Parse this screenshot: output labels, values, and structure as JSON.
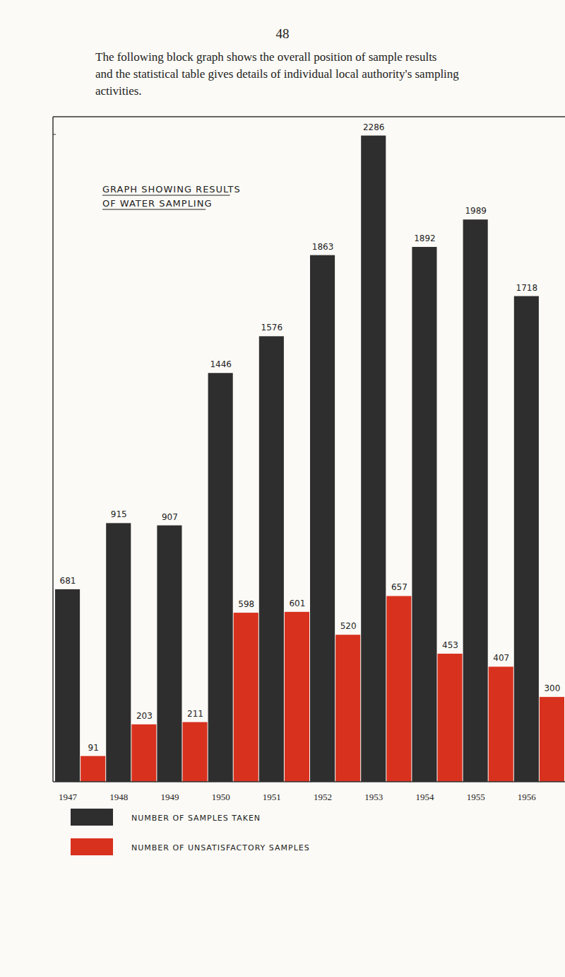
{
  "page": {
    "number": "48",
    "text_lines": [
      "The following block graph shows the overall position of sample results",
      "and the statistical table gives details of individual local authority's sampling",
      "activities."
    ]
  },
  "chart_data": {
    "type": "bar",
    "title": "GRAPH SHOWING RESULTS OF WATER SAMPLING",
    "categories": [
      "1947",
      "1948",
      "1949",
      "1950",
      "1951",
      "1952",
      "1953",
      "1954",
      "1955",
      "1956"
    ],
    "series": [
      {
        "name": "NUMBER OF SAMPLES TAKEN",
        "color": "#2e2e2e",
        "values": [
          681,
          915,
          907,
          1446,
          1576,
          1863,
          2286,
          1892,
          1989,
          1718
        ]
      },
      {
        "name": "NUMBER OF UNSATISFACTORY SAMPLES",
        "color": "#d8321f",
        "values": [
          91,
          203,
          211,
          598,
          601,
          520,
          657,
          453,
          407,
          300
        ]
      }
    ],
    "ylim": [
      0,
      2290
    ],
    "yticks": [],
    "tick_labels": "x",
    "data_labels": true,
    "grid": false,
    "legend": "bottom"
  }
}
